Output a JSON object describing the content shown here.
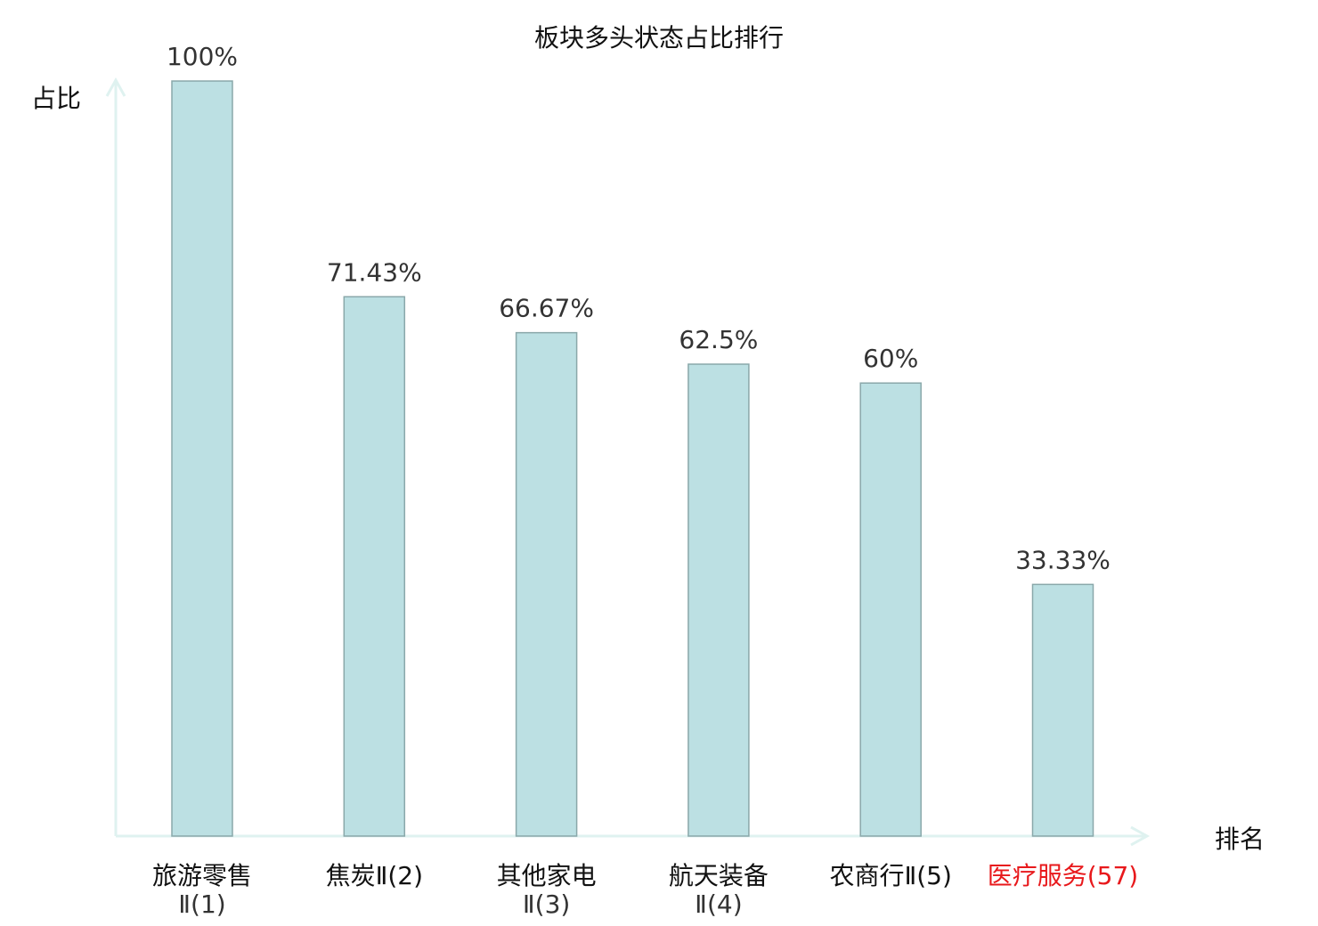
{
  "chart_data": {
    "type": "bar",
    "title": "板块多头状态占比排行",
    "xlabel": "排名",
    "ylabel": "占比",
    "ylim": [
      0,
      100
    ],
    "grid": false,
    "categories": [
      "旅游零售Ⅱ(1)",
      "焦炭Ⅱ(2)",
      "其他家电Ⅱ(3)",
      "航天装备Ⅱ(4)",
      "农商行Ⅱ(5)",
      "医疗服务(57)"
    ],
    "values": [
      100,
      71.43,
      66.67,
      62.5,
      60,
      33.33
    ],
    "data_labels": [
      "100%",
      "71.43%",
      "66.67%",
      "62.5%",
      "60%",
      "33.33%"
    ],
    "highlight_index": 5,
    "colors": {
      "bar_fill": "#bce0e3",
      "bar_stroke": "#8aa8aa",
      "axis": "#dff2f0",
      "text": "#333333",
      "highlight": "#e8191c"
    }
  }
}
